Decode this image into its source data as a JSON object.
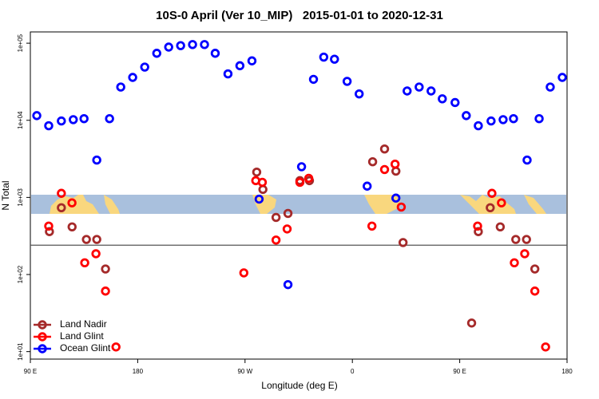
{
  "chart_data": {
    "type": "scatter",
    "title": "10S-0 April (Ver 10_MIP)   2015-01-01 to 2020-12-31",
    "xlabel": "Longitude (deg E)",
    "ylabel": "N Total",
    "log_y": true,
    "xlim": [
      90,
      540
    ],
    "ylim": [
      8,
      140000
    ],
    "xticks": [
      {
        "value": 90,
        "label": "90 E"
      },
      180,
      {
        "value": 270,
        "label": "90 W"
      },
      {
        "value": 360,
        "label": "0"
      },
      {
        "value": 450,
        "label": "90 E"
      },
      {
        "value": 540,
        "label": "180"
      }
    ],
    "yticks": [
      {
        "value": 10,
        "label": "1e+01"
      },
      {
        "value": 100,
        "label": "1e+02"
      },
      {
        "value": 1000,
        "label": "1e+03"
      },
      {
        "value": 10000,
        "label": "1e+04"
      },
      {
        "value": 100000,
        "label": "1e+05"
      }
    ],
    "hline": 240,
    "legend": "lower left",
    "series": [
      {
        "name": "Land Nadir",
        "color": "#a52a2a",
        "x": [
          106,
          116,
          125,
          137,
          145.7,
          153,
          279.8,
          285,
          296,
          306,
          316,
          324,
          377,
          387,
          396.5,
          402.5,
          460,
          465.6,
          475.6,
          484,
          497,
          506,
          513
        ],
        "values": [
          360,
          735,
          415,
          285,
          285,
          118,
          2130,
          1270,
          550,
          620,
          1650,
          1650,
          2900,
          4250,
          2190,
          260,
          23.5,
          360,
          735,
          415,
          285,
          285,
          118
        ]
      },
      {
        "name": "Land Glint",
        "color": "#ff0000",
        "x": [
          116,
          124.9,
          105.4,
          135.6,
          145,
          153,
          161.8,
          269,
          279,
          284.5,
          296,
          305.3,
          316,
          323.4,
          376.4,
          387,
          395.8,
          401,
          465,
          477,
          485,
          495.8,
          504.5,
          513,
          522
        ],
        "values": [
          1130,
          850,
          425,
          142,
          186,
          61,
          11.5,
          105,
          1650,
          1570,
          280,
          390,
          1570,
          1770,
          425,
          2300,
          2700,
          750,
          425,
          1130,
          850,
          142,
          186,
          61,
          11.5
        ]
      },
      {
        "name": "Ocean Glint",
        "color": "#0000ff",
        "x": [
          95.4,
          105.4,
          116,
          126,
          135,
          145.7,
          156.4,
          165.8,
          175.8,
          185.9,
          196,
          206,
          216,
          226,
          236,
          245,
          255.7,
          265.7,
          275.8,
          281.8,
          306,
          317.4,
          327.4,
          336,
          345,
          355.6,
          365.7,
          372.4,
          396.5,
          405.9,
          416,
          426,
          435.4,
          446.1,
          455.5,
          465.6,
          476.3,
          486.4,
          495.1,
          506.5,
          516.6,
          525.9,
          536
        ],
        "values": [
          11500,
          8500,
          9800,
          10200,
          10500,
          3050,
          10500,
          27000,
          36000,
          49000,
          74000,
          89000,
          93000,
          96000,
          96000,
          74000,
          40000,
          51000,
          59000,
          950,
          74,
          2500,
          34000,
          66000,
          62000,
          32000,
          22000,
          1400,
          980,
          24000,
          27000,
          24000,
          19000,
          17000,
          11500,
          8500,
          9800,
          10200,
          10500,
          3050,
          10500,
          27000,
          36000
        ]
      }
    ]
  }
}
